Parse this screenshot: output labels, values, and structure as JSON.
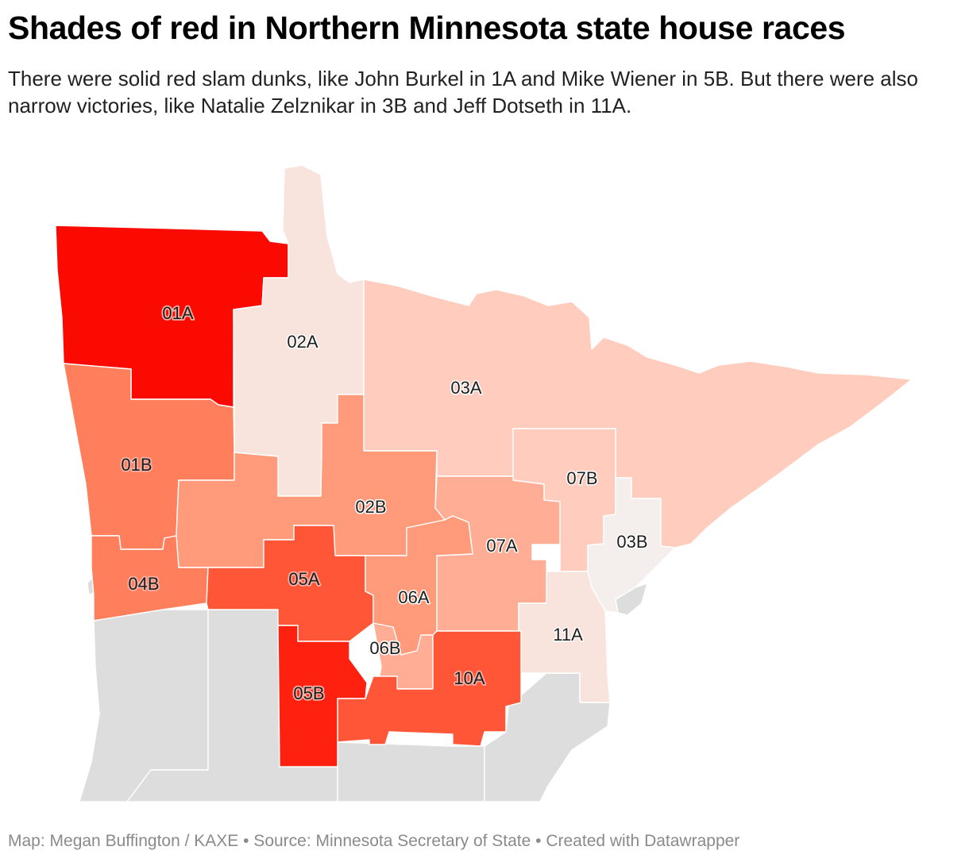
{
  "header": {
    "title": "Shades of red in Northern Minnesota state house races",
    "subtitle": "There were solid red slam dunks, like John Burkel in 1A and Mike Wiener in 5B. But there were also narrow victories, like Natalie Zelznikar in 3B and Jeff Dotseth in 11A."
  },
  "footer": {
    "credit": "Map: Megan Buffington / KAXE • Source: Minnesota Secretary of State • Created with Datawrapper"
  },
  "map": {
    "colors": {
      "darkest_red": "#fa0a00",
      "dark_red": "#ff2110",
      "strong_red": "#ff5638",
      "medium_red": "#ff7f5c",
      "salmon": "#ff9a7a",
      "light_salmon": "#ffad94",
      "pale_peach": "#ffccbd",
      "very_pale": "#f9e4dd",
      "near_white": "#f4efec",
      "other_county": "#dddddd"
    },
    "districts": [
      {
        "id": "01A",
        "label": "01A",
        "color": "#fa0a00"
      },
      {
        "id": "02A",
        "label": "02A",
        "color": "#f9e4dd"
      },
      {
        "id": "03A",
        "label": "03A",
        "color": "#ffccbd"
      },
      {
        "id": "01B",
        "label": "01B",
        "color": "#ff7f5c"
      },
      {
        "id": "02B",
        "label": "02B",
        "color": "#ff9a7a"
      },
      {
        "id": "07B",
        "label": "07B",
        "color": "#ffccbd"
      },
      {
        "id": "03B",
        "label": "03B",
        "color": "#f4efec"
      },
      {
        "id": "07A",
        "label": "07A",
        "color": "#ffad94"
      },
      {
        "id": "04B",
        "label": "04B",
        "color": "#ff7f5c"
      },
      {
        "id": "05A",
        "label": "05A",
        "color": "#ff5638"
      },
      {
        "id": "06A",
        "label": "06A",
        "color": "#ff9a7a"
      },
      {
        "id": "06B",
        "label": "06B",
        "color": "#ffad94"
      },
      {
        "id": "11A",
        "label": "11A",
        "color": "#f9e4dd"
      },
      {
        "id": "10A",
        "label": "10A",
        "color": "#ff5638"
      },
      {
        "id": "05B",
        "label": "05B",
        "color": "#ff2110"
      }
    ]
  }
}
